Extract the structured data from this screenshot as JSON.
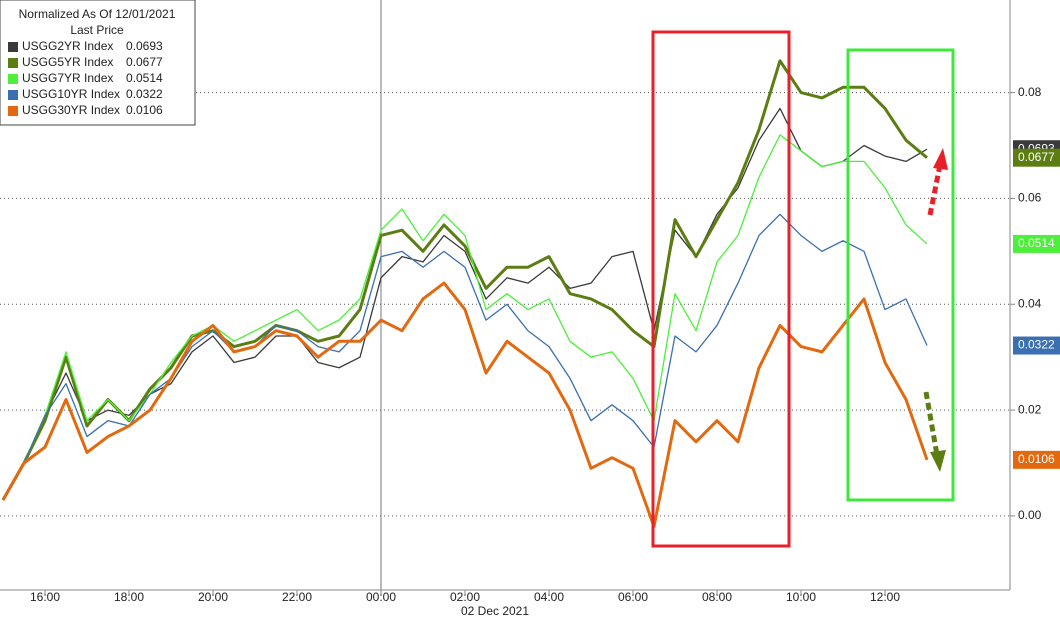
{
  "chart_data": {
    "type": "line",
    "legend_title": "Normalized As Of 12/01/2021",
    "legend_subtitle": "Last Price",
    "x_label": "02 Dec 2021",
    "categories": [
      null,
      null,
      "16:00",
      null,
      null,
      null,
      "18:00",
      null,
      null,
      null,
      "20:00",
      null,
      null,
      null,
      "22:00",
      null,
      null,
      null,
      "00:00",
      null,
      null,
      null,
      "02:00",
      null,
      null,
      null,
      "04:00",
      null,
      null,
      null,
      "06:00",
      null,
      null,
      null,
      "08:00",
      null,
      null,
      null,
      "10:00",
      null,
      null,
      null,
      "12:00",
      null,
      null
    ],
    "series": [
      {
        "name": "USGG2YR Index",
        "color": "#3a3a3a",
        "values": [
          0.003,
          0.01,
          0.019,
          0.027,
          0.018,
          0.02,
          0.019,
          0.023,
          0.025,
          0.031,
          0.034,
          0.029,
          0.03,
          0.034,
          0.034,
          0.029,
          0.028,
          0.03,
          0.045,
          0.049,
          0.048,
          0.053,
          0.05,
          0.041,
          0.045,
          0.044,
          0.047,
          0.043,
          0.044,
          0.049,
          0.05,
          0.035,
          0.054,
          0.049,
          0.057,
          0.062,
          0.071,
          0.077,
          0.069,
          0.066,
          0.067,
          0.07,
          0.068,
          0.067,
          0.0693
        ]
      },
      {
        "name": "USGG5YR Index",
        "color": "#5b7d12",
        "values": [
          0.003,
          0.01,
          0.018,
          0.03,
          0.017,
          0.022,
          0.018,
          0.024,
          0.028,
          0.034,
          0.035,
          0.032,
          0.033,
          0.036,
          0.035,
          0.033,
          0.034,
          0.039,
          0.053,
          0.054,
          0.05,
          0.055,
          0.051,
          0.043,
          0.047,
          0.047,
          0.049,
          0.042,
          0.041,
          0.039,
          0.035,
          0.032,
          0.056,
          0.049,
          0.056,
          0.063,
          0.073,
          0.086,
          0.08,
          0.079,
          0.081,
          0.081,
          0.077,
          0.071,
          0.0677
        ]
      },
      {
        "name": "USGG7YR Index",
        "color": "#4cf03a",
        "values": [
          0.003,
          0.01,
          0.019,
          0.031,
          0.018,
          0.022,
          0.018,
          0.023,
          0.029,
          0.034,
          0.036,
          0.033,
          0.035,
          0.037,
          0.039,
          0.035,
          0.037,
          0.041,
          0.054,
          0.058,
          0.052,
          0.057,
          0.053,
          0.039,
          0.042,
          0.039,
          0.041,
          0.033,
          0.03,
          0.031,
          0.026,
          0.018,
          0.042,
          0.035,
          0.048,
          0.053,
          0.064,
          0.072,
          0.069,
          0.066,
          0.067,
          0.067,
          0.062,
          0.055,
          0.0514
        ]
      },
      {
        "name": "USGG10YR Index",
        "color": "#3a6fb0",
        "values": [
          0.003,
          0.01,
          0.019,
          0.025,
          0.015,
          0.018,
          0.017,
          0.023,
          0.026,
          0.032,
          0.035,
          0.031,
          0.032,
          0.036,
          0.035,
          0.032,
          0.031,
          0.035,
          0.049,
          0.05,
          0.047,
          0.05,
          0.047,
          0.037,
          0.04,
          0.035,
          0.032,
          0.026,
          0.018,
          0.021,
          0.018,
          0.013,
          0.034,
          0.031,
          0.036,
          0.044,
          0.053,
          0.057,
          0.053,
          0.05,
          0.052,
          0.05,
          0.039,
          0.041,
          0.0322
        ]
      },
      {
        "name": "USGG30YR Index",
        "color": "#e2690f",
        "values": [
          0.003,
          0.01,
          0.013,
          0.022,
          0.012,
          0.015,
          0.017,
          0.02,
          0.026,
          0.033,
          0.036,
          0.031,
          0.032,
          0.035,
          0.034,
          0.03,
          0.033,
          0.033,
          0.037,
          0.035,
          0.041,
          0.044,
          0.039,
          0.027,
          0.033,
          0.03,
          0.027,
          0.02,
          0.009,
          0.011,
          0.009,
          -0.002,
          0.018,
          0.014,
          0.018,
          0.014,
          0.028,
          0.036,
          0.032,
          0.031,
          0.036,
          0.041,
          0.029,
          0.022,
          0.0106
        ]
      }
    ],
    "ylim": [
      -0.014,
      0.0975
    ],
    "yticks": [
      {
        "value": 0,
        "label": "0.00"
      },
      0.02,
      0.04,
      0.06,
      0.08
    ],
    "grid": true
  }
}
